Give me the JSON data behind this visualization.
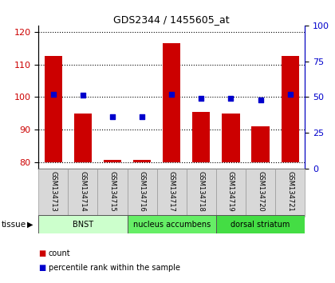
{
  "title": "GDS2344 / 1455605_at",
  "samples": [
    "GSM134713",
    "GSM134714",
    "GSM134715",
    "GSM134716",
    "GSM134717",
    "GSM134718",
    "GSM134719",
    "GSM134720",
    "GSM134721"
  ],
  "counts": [
    112.5,
    95.0,
    80.5,
    80.5,
    116.5,
    95.5,
    95.0,
    91.0,
    112.5
  ],
  "percentiles": [
    52,
    51,
    36,
    36,
    52,
    49,
    49,
    48,
    52
  ],
  "ylim_left": [
    78,
    122
  ],
  "ylim_right": [
    0,
    100
  ],
  "yticks_left": [
    80,
    90,
    100,
    110,
    120
  ],
  "yticks_right": [
    0,
    25,
    50,
    75,
    100
  ],
  "bar_color": "#cc0000",
  "dot_color": "#0000cc",
  "bar_bottom": 80,
  "tissue_groups": [
    {
      "label": "BNST",
      "start": 0,
      "end": 3,
      "color": "#ccffcc"
    },
    {
      "label": "nucleus accumbens",
      "start": 3,
      "end": 6,
      "color": "#66ee66"
    },
    {
      "label": "dorsal striatum",
      "start": 6,
      "end": 9,
      "color": "#44dd44"
    }
  ],
  "tissue_label": "tissue",
  "legend_items": [
    {
      "label": "count",
      "color": "#cc0000"
    },
    {
      "label": "percentile rank within the sample",
      "color": "#0000cc"
    }
  ],
  "left_tick_color": "#cc0000",
  "right_tick_color": "#0000cc"
}
